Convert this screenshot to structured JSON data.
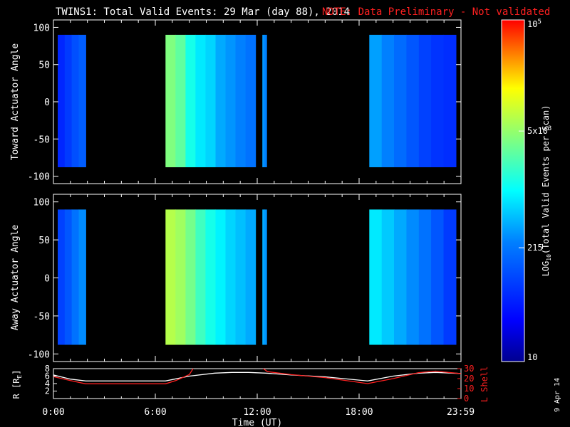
{
  "title": "TWINS1: Total Valid Events: 29 Mar (day  88), 2014",
  "note": "NOTE: Data Preliminary - Not validated",
  "date_stamp": "9 Apr 14",
  "colors": {
    "background": "#000000",
    "note": "#ff2020",
    "axes": "#ffffff",
    "lshell": "#ff2020",
    "radius": "#ffffff"
  },
  "colorbar": {
    "label": "LOG10(Total Valid Events per Scan)",
    "label_main": "LOG",
    "label_sub": "10",
    "label_rest": "(Total Valid Events per Scan)",
    "scale": "log",
    "range": [
      10,
      100000
    ],
    "ticks": [
      {
        "value": 100000,
        "base": "10",
        "exp": "5"
      },
      {
        "value": 5000,
        "base": "5x10",
        "exp": "3"
      },
      {
        "value": 215,
        "base": "215",
        "exp": ""
      },
      {
        "value": 10,
        "base": "10",
        "exp": ""
      }
    ]
  },
  "chart_data": [
    {
      "type": "heatmap",
      "panel": "toward",
      "ylabel": "Toward Actuator Angle",
      "xlim": [
        0,
        24
      ],
      "ylim": [
        -110,
        110
      ],
      "yticks": [
        "100",
        "50",
        "0",
        "-50",
        "-100"
      ],
      "ytick_values": [
        100,
        50,
        0,
        -50,
        -100
      ],
      "angle_range": [
        -88,
        90
      ],
      "segments": [
        {
          "start": 0.25,
          "end": 1.9,
          "log_counts": [
            1.75,
            1.9,
            2.05,
            2.15
          ]
        },
        {
          "start": 6.6,
          "end": 11.9,
          "log_counts": [
            3.6,
            3.45,
            3.1,
            2.9,
            2.8,
            2.6,
            2.5,
            2.4,
            2.3
          ]
        },
        {
          "start": 12.3,
          "end": 12.55,
          "log_counts": [
            2.5,
            2.4
          ]
        },
        {
          "start": 18.6,
          "end": 23.7,
          "log_counts": [
            2.55,
            2.4,
            2.25,
            2.1,
            1.95,
            1.85,
            1.8
          ]
        }
      ]
    },
    {
      "type": "heatmap",
      "panel": "away",
      "ylabel": "Away Actuator Angle",
      "xlim": [
        0,
        24
      ],
      "ylim": [
        -110,
        110
      ],
      "yticks": [
        "100",
        "50",
        "0",
        "-50",
        "-100"
      ],
      "ytick_values": [
        100,
        50,
        0,
        -50,
        -100
      ],
      "angle_range": [
        -88,
        90
      ],
      "segments": [
        {
          "start": 0.25,
          "end": 1.9,
          "log_counts": [
            1.95,
            2.1,
            2.3,
            2.45
          ]
        },
        {
          "start": 6.6,
          "end": 11.9,
          "log_counts": [
            3.85,
            3.75,
            3.55,
            3.3,
            3.1,
            2.95,
            2.8,
            2.7,
            2.6
          ]
        },
        {
          "start": 12.3,
          "end": 12.55,
          "log_counts": [
            2.6,
            2.5
          ]
        },
        {
          "start": 18.6,
          "end": 23.7,
          "log_counts": [
            2.9,
            2.75,
            2.6,
            2.45,
            2.3,
            2.1,
            1.9
          ]
        }
      ]
    },
    {
      "type": "line",
      "panel": "orbit",
      "xlabel": "Time (UT)",
      "xticks": [
        "0:00",
        "6:00",
        "12:00",
        "18:00",
        "23:59"
      ],
      "xtick_values": [
        0,
        6,
        12,
        18,
        23.98
      ],
      "xlim": [
        0,
        24
      ],
      "left_axis": {
        "label": "R [RE]",
        "label_main": "R [R",
        "label_sub": "E",
        "label_end": "]",
        "ticks": [
          "8",
          "6",
          "4",
          "2"
        ],
        "tick_values": [
          8,
          6,
          4,
          2
        ],
        "ylim": [
          0,
          8
        ]
      },
      "right_axis": {
        "label": "L Shell",
        "ticks": [
          "30",
          "20",
          "10",
          "0"
        ],
        "tick_values": [
          30,
          20,
          10,
          0
        ],
        "ylim": [
          0,
          30
        ]
      },
      "series": [
        {
          "name": "R [RE]",
          "axis": "left",
          "x": [
            0,
            1.0,
            1.9,
            3,
            5,
            6.6,
            8,
            9.5,
            10.5,
            11.5,
            12.5,
            14,
            16,
            18.5,
            20,
            21.5,
            22.5,
            24
          ],
          "y": [
            6.3,
            5.2,
            4.7,
            4.7,
            4.7,
            4.7,
            6.0,
            6.8,
            7.0,
            7.0,
            6.8,
            6.3,
            5.8,
            4.7,
            6.0,
            6.8,
            7.0,
            6.7
          ]
        },
        {
          "name": "L Shell",
          "axis": "right",
          "x": [
            0,
            1.0,
            1.9,
            3,
            5,
            6.6,
            7.2,
            8.0,
            8.3,
            12.2,
            12.6,
            14,
            16,
            18.5,
            20,
            21.5,
            22.5,
            24
          ],
          "y": [
            22,
            18,
            14.8,
            14.8,
            14.8,
            14.8,
            18,
            24,
            32,
            32,
            27,
            24,
            21,
            15,
            20,
            26,
            27.5,
            25
          ]
        }
      ]
    }
  ]
}
